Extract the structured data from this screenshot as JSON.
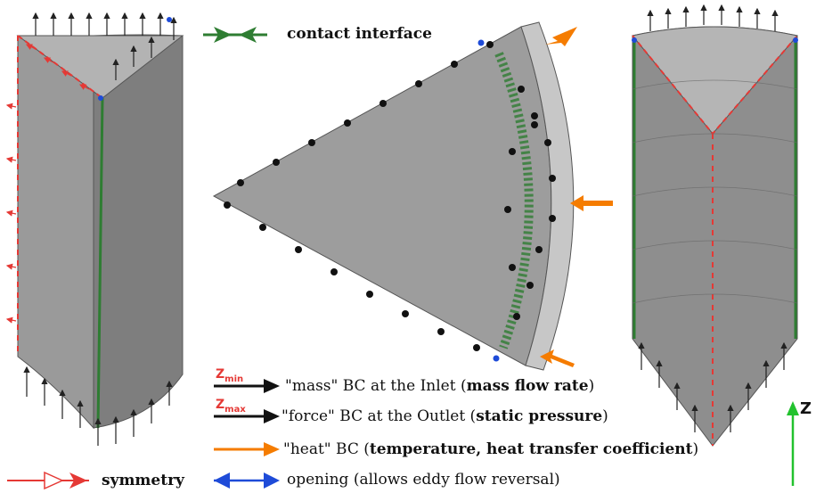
{
  "colors": {
    "contact": "#2e7d32",
    "symmetry": "#e53935",
    "inlet_outlet": "#111111",
    "heat": "#f57c00",
    "opening": "#1e4bd8",
    "z_axis": "#22c22e",
    "body_gray": "#9a9a9a",
    "body_dark": "#7e7e7e"
  },
  "legend": {
    "contact": {
      "label": "contact interface"
    },
    "symmetry": {
      "label": "symmetry"
    },
    "opening": {
      "prefix": "opening",
      "suffix": "(allows eddy flow reversal)"
    },
    "inlet": {
      "tag": "Z",
      "tag_sub": "min",
      "text": "\"mass\" BC at the Inlet (",
      "bold": "mass flow rate",
      "end": ")"
    },
    "outlet": {
      "tag": "Z",
      "tag_sub": "max",
      "text": "\"force\" BC at the Outlet (",
      "bold": "static pressure",
      "end": ")"
    },
    "heat": {
      "text": "\"heat\" BC (",
      "bold": "temperature, heat transfer coefficient",
      "end": ")"
    }
  },
  "axis": {
    "label": "Z"
  }
}
